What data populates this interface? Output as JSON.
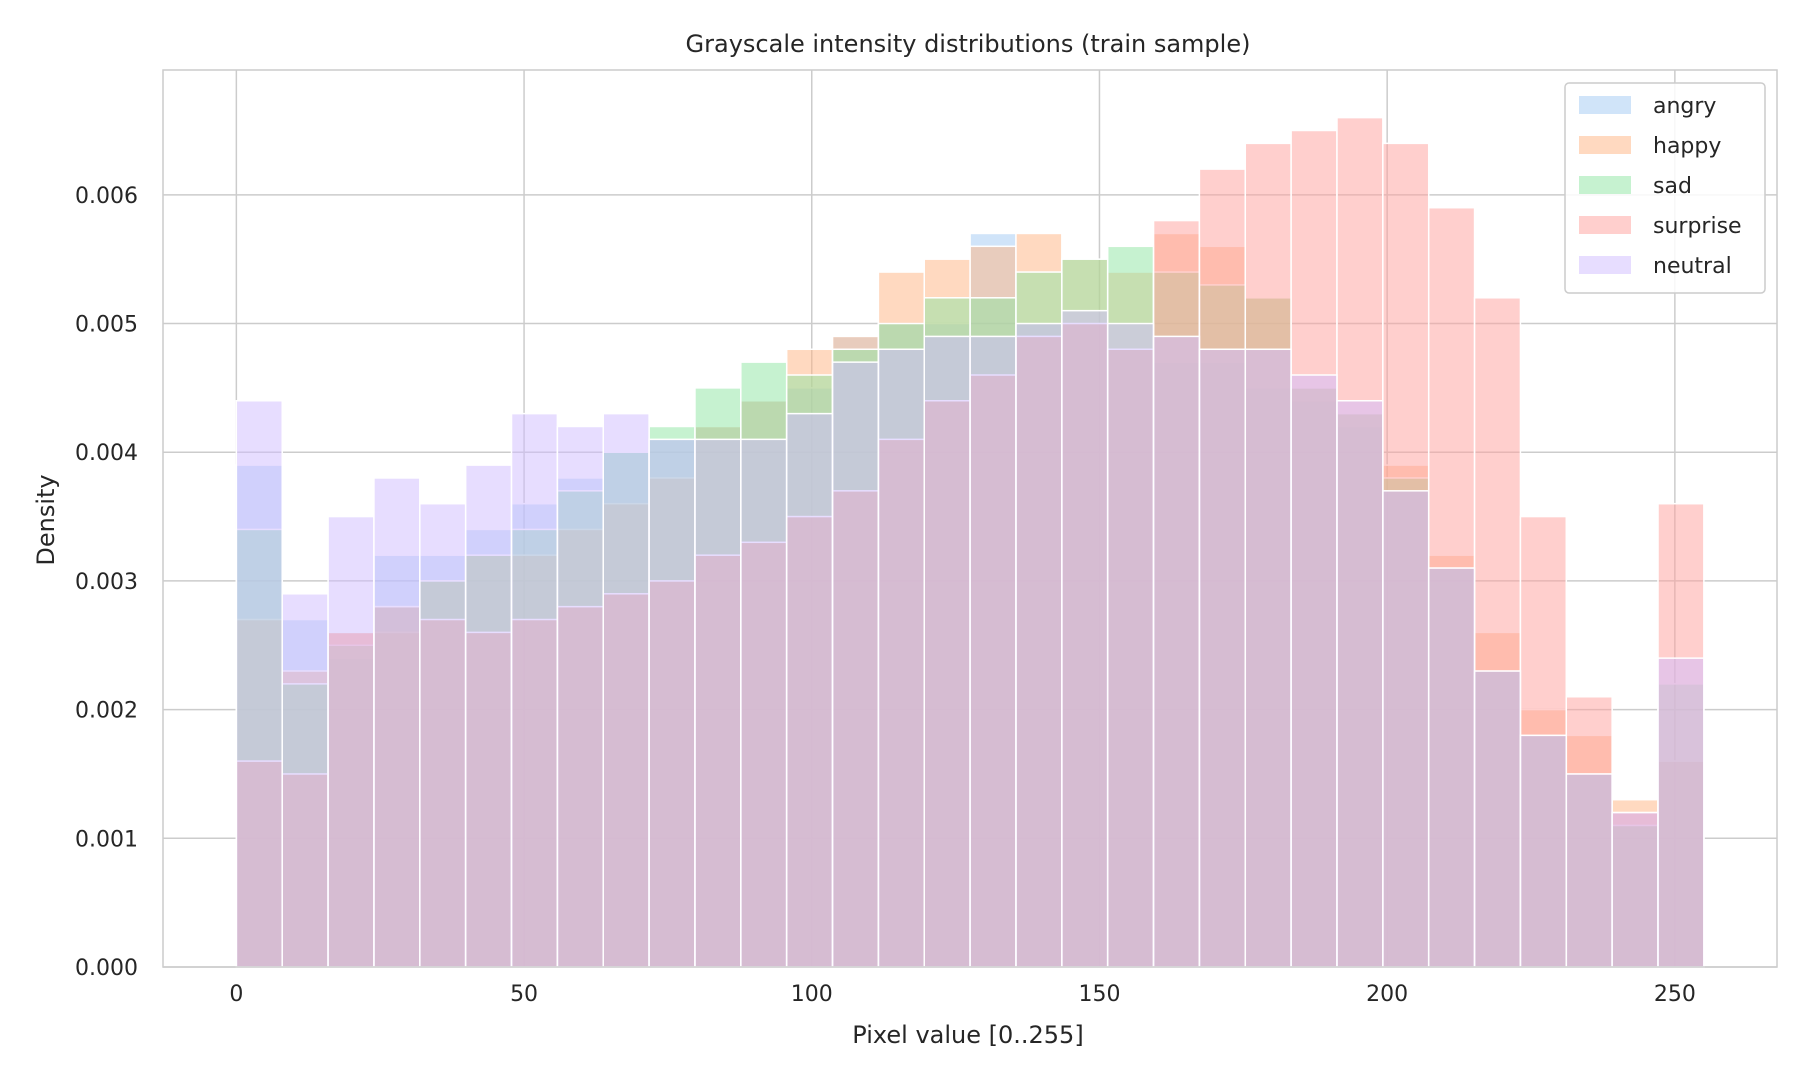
{
  "chart_data": {
    "type": "bar",
    "title": "Grayscale intensity distributions (train sample)",
    "xlabel": "Pixel value [0..255]",
    "ylabel": "Density",
    "xlim": [
      -12.75,
      267.75
    ],
    "ylim": [
      0,
      0.00697
    ],
    "xticks": [
      0,
      50,
      100,
      150,
      200,
      250
    ],
    "xtick_labels": [
      "0",
      "50",
      "100",
      "150",
      "200",
      "250"
    ],
    "yticks": [
      0,
      0.001,
      0.002,
      0.003,
      0.004,
      0.005,
      0.006
    ],
    "ytick_labels": [
      "0.000",
      "0.001",
      "0.002",
      "0.003",
      "0.004",
      "0.005",
      "0.006"
    ],
    "grid": true,
    "legend_position": "top-right",
    "bin_start": 0,
    "bin_width": 7.97,
    "bin_count": 32,
    "series": [
      {
        "name": "angry",
        "color": "#a1c9f4",
        "values": [
          0.0039,
          0.0027,
          0.0024,
          0.0032,
          0.0032,
          0.0034,
          0.0036,
          0.0038,
          0.004,
          0.0041,
          0.0042,
          0.0044,
          0.0045,
          0.0049,
          0.005,
          0.005,
          0.0057,
          0.005,
          0.005,
          0.0048,
          0.0047,
          0.0047,
          0.0045,
          0.0044,
          0.0042,
          0.0037,
          0.0031,
          0.0023,
          0.0018,
          0.0015,
          0.0011,
          0.0016
        ]
      },
      {
        "name": "happy",
        "color": "#ffb482",
        "values": [
          0.0027,
          0.0023,
          0.0026,
          0.0026,
          0.003,
          0.0032,
          0.0032,
          0.0034,
          0.0036,
          0.0038,
          0.0042,
          0.0044,
          0.0048,
          0.0049,
          0.0054,
          0.0055,
          0.0056,
          0.0057,
          0.0055,
          0.0054,
          0.0057,
          0.0056,
          0.0052,
          0.0045,
          0.0043,
          0.0039,
          0.0032,
          0.0026,
          0.002,
          0.0018,
          0.0013,
          0.0016
        ]
      },
      {
        "name": "sad",
        "color": "#8de5a1",
        "values": [
          0.0034,
          0.0022,
          0.0025,
          0.0028,
          0.003,
          0.0032,
          0.0034,
          0.0037,
          0.004,
          0.0042,
          0.0045,
          0.0047,
          0.0046,
          0.0048,
          0.005,
          0.0052,
          0.0052,
          0.0054,
          0.0055,
          0.0056,
          0.0054,
          0.0053,
          0.0052,
          0.0045,
          0.0043,
          0.0038,
          0.0031,
          0.0023,
          0.0018,
          0.0015,
          0.0011,
          0.0022
        ]
      },
      {
        "name": "surprise",
        "color": "#ff9f9b",
        "values": [
          0.0016,
          0.0015,
          0.0026,
          0.0028,
          0.0027,
          0.0026,
          0.0027,
          0.0028,
          0.0029,
          0.003,
          0.0032,
          0.0033,
          0.0035,
          0.0037,
          0.0041,
          0.0044,
          0.0046,
          0.0049,
          0.005,
          0.0048,
          0.0058,
          0.0062,
          0.0064,
          0.0065,
          0.0066,
          0.0064,
          0.0059,
          0.0052,
          0.0035,
          0.0021,
          0.0012,
          0.0036
        ]
      },
      {
        "name": "neutral",
        "color": "#d0bbff",
        "values": [
          0.0044,
          0.0029,
          0.0035,
          0.0038,
          0.0036,
          0.0039,
          0.0043,
          0.0042,
          0.0043,
          0.0041,
          0.0041,
          0.0041,
          0.0043,
          0.0047,
          0.0048,
          0.0049,
          0.0049,
          0.005,
          0.0051,
          0.005,
          0.0049,
          0.0048,
          0.0048,
          0.0046,
          0.0044,
          0.0037,
          0.0031,
          0.0023,
          0.0018,
          0.0015,
          0.0012,
          0.0024
        ]
      }
    ]
  }
}
